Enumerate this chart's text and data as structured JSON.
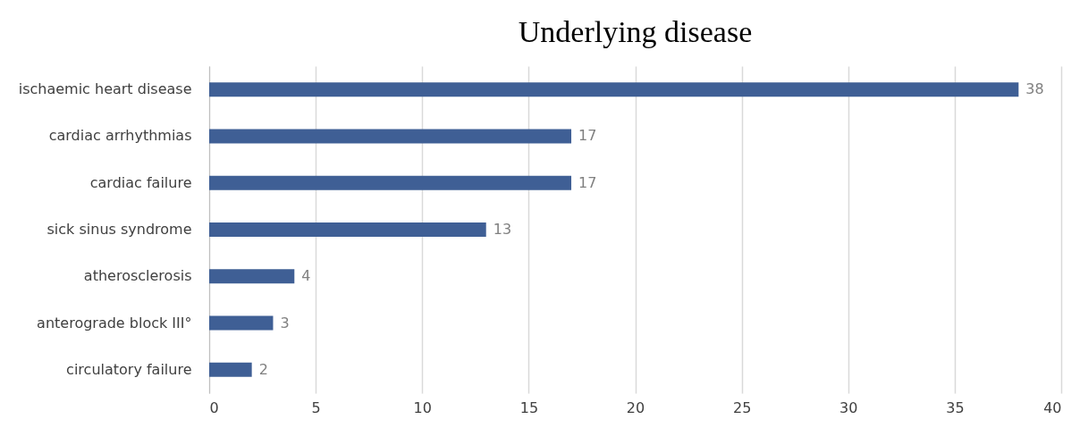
{
  "chart_data": {
    "type": "bar",
    "orientation": "horizontal",
    "title": "Underlying disease",
    "categories": [
      "ischaemic heart disease",
      "cardiac arrhythmias",
      "cardiac failure",
      "sick sinus syndrome",
      "atherosclerosis",
      "anterograde block III°",
      "circulatory failure"
    ],
    "values": [
      38,
      17,
      17,
      13,
      4,
      3,
      2
    ],
    "color": "#3f5f95",
    "xlim": [
      0,
      40
    ],
    "xticks": [
      0,
      5,
      10,
      15,
      20,
      25,
      30,
      35,
      40
    ],
    "grid": "x",
    "data_labels": true
  }
}
